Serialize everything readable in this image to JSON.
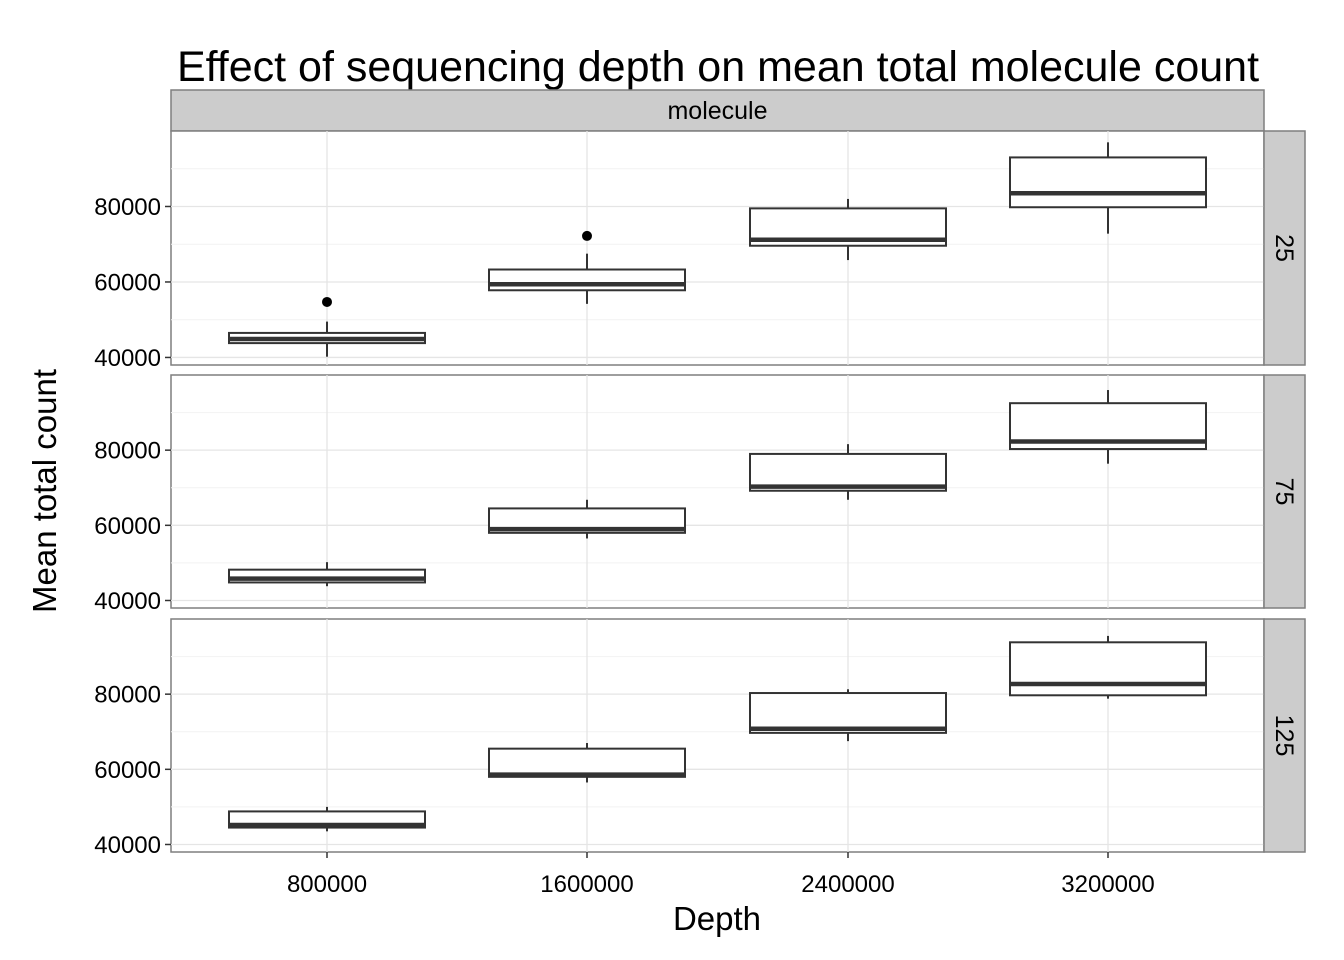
{
  "chart_data": {
    "type": "boxplot",
    "title": "Effect of sequencing depth on mean total molecule count",
    "xlabel": "Depth",
    "ylabel": "Mean total count",
    "facet_top_label": "molecule",
    "categories": [
      "800000",
      "1600000",
      "2400000",
      "3200000"
    ],
    "y_ticks": [
      40000,
      60000,
      80000
    ],
    "ylim": [
      38000,
      100000
    ],
    "grid": true,
    "panels": [
      {
        "label": "25",
        "boxes": [
          {
            "category": "800000",
            "lower_whisker": 40200,
            "q1": 43800,
            "median": 44900,
            "q3": 46500,
            "upper_whisker": 49500,
            "outliers": [
              54700
            ]
          },
          {
            "category": "1600000",
            "lower_whisker": 54200,
            "q1": 57800,
            "median": 59400,
            "q3": 63300,
            "upper_whisker": 67500,
            "outliers": [
              72200
            ]
          },
          {
            "category": "2400000",
            "lower_whisker": 65800,
            "q1": 69600,
            "median": 71200,
            "q3": 79500,
            "upper_whisker": 82000,
            "outliers": []
          },
          {
            "category": "3200000",
            "lower_whisker": 72800,
            "q1": 79800,
            "median": 83500,
            "q3": 93000,
            "upper_whisker": 97000,
            "outliers": []
          }
        ]
      },
      {
        "label": "75",
        "boxes": [
          {
            "category": "800000",
            "lower_whisker": 43800,
            "q1": 44800,
            "median": 45800,
            "q3": 48200,
            "upper_whisker": 50200,
            "outliers": []
          },
          {
            "category": "1600000",
            "lower_whisker": 56500,
            "q1": 58000,
            "median": 59000,
            "q3": 64500,
            "upper_whisker": 66800,
            "outliers": []
          },
          {
            "category": "2400000",
            "lower_whisker": 66800,
            "q1": 69200,
            "median": 70300,
            "q3": 79000,
            "upper_whisker": 81600,
            "outliers": []
          },
          {
            "category": "3200000",
            "lower_whisker": 76400,
            "q1": 80300,
            "median": 82300,
            "q3": 92500,
            "upper_whisker": 96000,
            "outliers": []
          }
        ]
      },
      {
        "label": "125",
        "boxes": [
          {
            "category": "800000",
            "lower_whisker": 43500,
            "q1": 44500,
            "median": 45200,
            "q3": 48800,
            "upper_whisker": 50000,
            "outliers": []
          },
          {
            "category": "1600000",
            "lower_whisker": 56500,
            "q1": 58000,
            "median": 58600,
            "q3": 65500,
            "upper_whisker": 67000,
            "outliers": []
          },
          {
            "category": "2400000",
            "lower_whisker": 67500,
            "q1": 69700,
            "median": 70800,
            "q3": 80300,
            "upper_whisker": 81300,
            "outliers": []
          },
          {
            "category": "3200000",
            "lower_whisker": 78800,
            "q1": 79700,
            "median": 82700,
            "q3": 93800,
            "upper_whisker": 95500,
            "outliers": []
          }
        ]
      }
    ],
    "colors": {
      "box_stroke": "#333333",
      "box_fill": "#ffffff",
      "strip_fill": "#cccccc",
      "panel_border": "#7f7f7f",
      "grid_major": "#e5e5e5",
      "grid_minor": "#f2f2f2"
    }
  }
}
